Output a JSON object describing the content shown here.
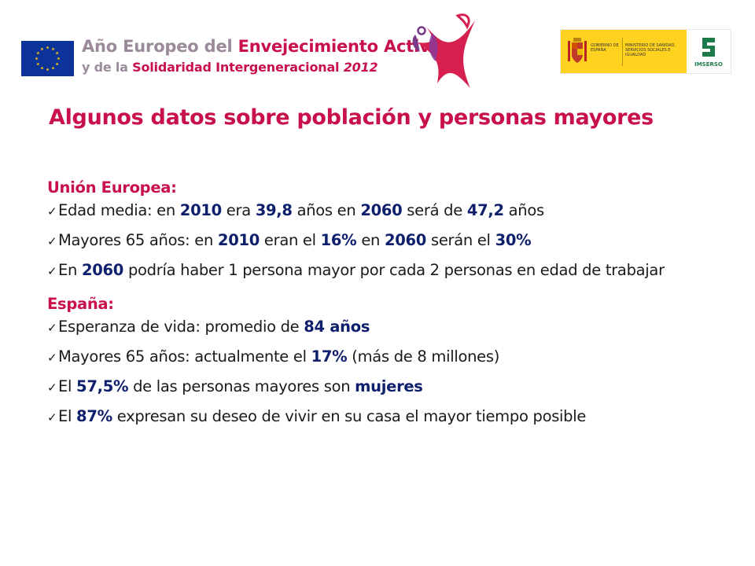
{
  "header": {
    "year_title": {
      "line1_a": "Año Europeo del ",
      "line1_b": "Envejecimiento Activo",
      "line2_a": "y de la ",
      "line2_b": "Solidaridad Intergeneracional ",
      "line2_year": "2012"
    },
    "gov_logo": {
      "gobierno": "GOBIERNO DE ESPAÑA",
      "ministerio": "MINISTERIO DE SANIDAD, SERVICIOS SOCIALES E IGUALDAD",
      "imserso": "IMSERSO"
    }
  },
  "title": "Algunos datos sobre población y personas mayores",
  "sections": [
    {
      "heading": "Unión Europea:",
      "bullets": [
        [
          {
            "t": "Edad media: en ",
            "b": false
          },
          {
            "t": "2010",
            "b": true
          },
          {
            "t": " era ",
            "b": false
          },
          {
            "t": "39,8",
            "b": true
          },
          {
            "t": " años en ",
            "b": false
          },
          {
            "t": "2060",
            "b": true
          },
          {
            "t": " será de ",
            "b": false
          },
          {
            "t": "47,2",
            "b": true
          },
          {
            "t": " años",
            "b": false
          }
        ],
        [
          {
            "t": "Mayores 65 años: en ",
            "b": false
          },
          {
            "t": "2010",
            "b": true
          },
          {
            "t": " eran el ",
            "b": false
          },
          {
            "t": "16%",
            "b": true
          },
          {
            "t": " en ",
            "b": false
          },
          {
            "t": "2060",
            "b": true
          },
          {
            "t": " serán el ",
            "b": false
          },
          {
            "t": "30%",
            "b": true
          }
        ],
        [
          {
            "t": "En ",
            "b": false
          },
          {
            "t": "2060",
            "b": true
          },
          {
            "t": " podría haber 1 persona mayor por cada 2 personas en edad de trabajar",
            "b": false
          }
        ]
      ]
    },
    {
      "heading": "España:",
      "bullets": [
        [
          {
            "t": "Esperanza de vida: promedio de ",
            "b": false
          },
          {
            "t": "84 años",
            "b": true
          }
        ],
        [
          {
            "t": "Mayores 65 años: actualmente el ",
            "b": false
          },
          {
            "t": "17%",
            "b": true
          },
          {
            "t": " (más de 8 millones)",
            "b": false
          }
        ],
        [
          {
            "t": "El ",
            "b": false
          },
          {
            "t": "57,5%",
            "b": true
          },
          {
            "t": " de las personas mayores son ",
            "b": false
          },
          {
            "t": "mujeres",
            "b": true
          }
        ],
        [
          {
            "t": "El ",
            "b": false
          },
          {
            "t": "87%",
            "b": true
          },
          {
            "t": " expresan su deseo de vivir en su casa el  mayor tiempo posible",
            "b": false
          }
        ]
      ]
    }
  ],
  "colors": {
    "accent": "#c8104a",
    "emphasis": "#0e1f6b",
    "header_grey": "#9a8a9a",
    "eu_blue": "#0c3399",
    "gov_yellow": "#ffd21f"
  }
}
